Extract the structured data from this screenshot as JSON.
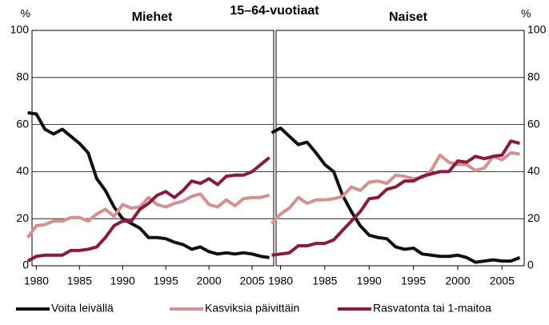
{
  "title": "15–64-vuotiaat",
  "chart_data": [
    {
      "type": "line",
      "title": "Miehet",
      "ylabel": "%",
      "ytick_side": "left",
      "x": [
        1979,
        1980,
        1981,
        1982,
        1983,
        1984,
        1985,
        1986,
        1987,
        1988,
        1989,
        1990,
        1991,
        1992,
        1993,
        1994,
        1995,
        1996,
        1997,
        1998,
        1999,
        2000,
        2001,
        2002,
        2003,
        2004,
        2005,
        2006,
        2007
      ],
      "xlim": [
        1979.5,
        2007.5
      ],
      "ylim": [
        0,
        100
      ],
      "xticks": [
        1980,
        1985,
        1990,
        1995,
        2000,
        2005
      ],
      "yticks": [
        0,
        20,
        40,
        60,
        80,
        100
      ],
      "grid": true,
      "series": [
        {
          "name": "Voita leivällä",
          "color": "#111111",
          "values": [
            65,
            64.5,
            58,
            56,
            58,
            55,
            52,
            48,
            37,
            32,
            25,
            20,
            18,
            16,
            12,
            12,
            11.5,
            10,
            9,
            7,
            8,
            6,
            5,
            5.5,
            5,
            5.5,
            5,
            4,
            3.5
          ]
        },
        {
          "name": "Kasviksia  päivittäin",
          "color": "#d4918f",
          "values": [
            12,
            17,
            17.5,
            19,
            19,
            20.5,
            20.5,
            19,
            22,
            24,
            21,
            26,
            24.5,
            25,
            29,
            26,
            25,
            26.5,
            27.5,
            29.5,
            30.5,
            26,
            25,
            28,
            25.5,
            28.5,
            29,
            29,
            30
          ]
        },
        {
          "name": "Rasvatonta tai 1-maitoa",
          "color": "#8b1a3e",
          "values": [
            2,
            4,
            4.5,
            4.5,
            4.5,
            6.5,
            6.5,
            7,
            8,
            12,
            17,
            19,
            19,
            24,
            26.5,
            30,
            31.5,
            29,
            32,
            36,
            35,
            37,
            34.5,
            38,
            38.5,
            38.5,
            40,
            43,
            46
          ]
        }
      ]
    },
    {
      "type": "line",
      "title": "Naiset",
      "ylabel": "%",
      "ytick_side": "right",
      "x": [
        1979,
        1980,
        1981,
        1982,
        1983,
        1984,
        1985,
        1986,
        1987,
        1988,
        1989,
        1990,
        1991,
        1992,
        1993,
        1994,
        1995,
        1996,
        1997,
        1998,
        1999,
        2000,
        2001,
        2002,
        2003,
        2004,
        2005,
        2006,
        2007
      ],
      "xlim": [
        1979.5,
        2007.5
      ],
      "ylim": [
        0,
        100
      ],
      "xticks": [
        1980,
        1985,
        1990,
        1995,
        2000,
        2005
      ],
      "yticks": [
        0,
        20,
        40,
        60,
        80,
        100
      ],
      "grid": true,
      "series": [
        {
          "color": "#111111",
          "values": [
            56.5,
            58.5,
            55,
            51.5,
            52.5,
            48,
            43,
            40,
            30,
            23,
            17,
            13,
            12,
            11.5,
            8,
            7,
            7.5,
            5,
            4.5,
            4,
            4,
            4.5,
            3.5,
            1.5,
            2,
            2.5,
            2,
            2,
            3.5
          ]
        },
        {
          "color": "#d4918f",
          "values": [
            18,
            22,
            24.5,
            29,
            26.5,
            28,
            28,
            28.5,
            29.5,
            33.5,
            32,
            35.5,
            36,
            35,
            38.5,
            38,
            37,
            37.5,
            40.5,
            47,
            44,
            43,
            43,
            40.5,
            41.5,
            46.5,
            45,
            48,
            47.5
          ]
        },
        {
          "color": "#8b1a3e",
          "values": [
            4.5,
            5,
            5.5,
            8.5,
            8.5,
            9.5,
            9.5,
            11,
            15,
            19,
            23,
            28.5,
            29,
            32.5,
            33.5,
            36,
            36,
            38,
            39,
            40,
            40,
            44.5,
            44,
            46.5,
            45.5,
            46.5,
            47,
            53,
            52
          ]
        }
      ]
    }
  ]
}
